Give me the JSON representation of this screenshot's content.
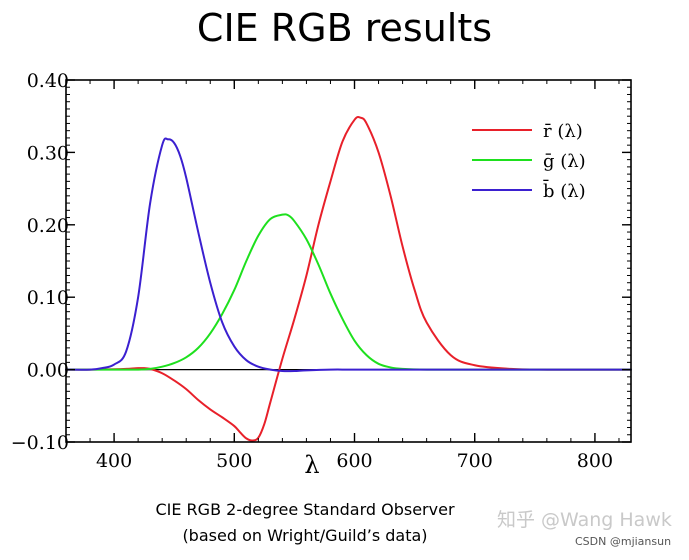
{
  "slide": {
    "title": "CIE RGB results",
    "caption_line1": "CIE RGB 2-degree Standard Observer",
    "caption_line2": "(based on Wright/Guild’s data)",
    "watermark": "知乎 @Wang Hawk",
    "credit": "CSDN @mjiansun"
  },
  "chart_data": {
    "type": "line",
    "title": "",
    "xlabel": "λ",
    "ylabel": "",
    "xlim": [
      360,
      830
    ],
    "ylim": [
      -0.1,
      0.4
    ],
    "xticks": [
      "400",
      "500",
      "600",
      "700",
      "800"
    ],
    "xtick_values": [
      400,
      500,
      600,
      700,
      800
    ],
    "yticks": [
      "−0.10",
      "0.00",
      "0.10",
      "0.20",
      "0.30",
      "0.40"
    ],
    "ytick_values": [
      -0.1,
      0.0,
      0.1,
      0.2,
      0.3,
      0.4
    ],
    "grid": false,
    "legend_position": "top-right",
    "zero_line": true,
    "series": [
      {
        "name": "r̄ (λ)",
        "color": "#e8202a",
        "x": [
          360,
          380,
          400,
          410,
          420,
          425,
          430,
          440,
          450,
          460,
          470,
          480,
          490,
          500,
          505,
          510,
          515,
          520,
          525,
          530,
          540,
          550,
          560,
          570,
          580,
          590,
          600,
          605,
          610,
          620,
          630,
          640,
          650,
          660,
          680,
          700,
          730,
          760,
          800,
          830
        ],
        "y": [
          0.0,
          0.0,
          0.0005,
          0.001,
          0.002,
          0.002,
          0.001,
          -0.005,
          -0.015,
          -0.027,
          -0.042,
          -0.055,
          -0.066,
          -0.078,
          -0.087,
          -0.095,
          -0.098,
          -0.094,
          -0.075,
          -0.045,
          0.015,
          0.07,
          0.13,
          0.2,
          0.26,
          0.315,
          0.345,
          0.348,
          0.34,
          0.3,
          0.24,
          0.17,
          0.11,
          0.065,
          0.02,
          0.006,
          0.001,
          0.0,
          0.0,
          0.0
        ]
      },
      {
        "name": "ḡ (λ)",
        "color": "#1ee01e",
        "x": [
          360,
          380,
          400,
          420,
          430,
          440,
          450,
          460,
          470,
          480,
          490,
          500,
          510,
          520,
          530,
          540,
          545,
          550,
          560,
          570,
          580,
          590,
          600,
          610,
          620,
          630,
          640,
          660,
          700,
          760,
          830
        ],
        "y": [
          0.0,
          0.0,
          0.0,
          0.0,
          0.001,
          0.004,
          0.009,
          0.017,
          0.03,
          0.05,
          0.077,
          0.11,
          0.15,
          0.185,
          0.208,
          0.214,
          0.213,
          0.205,
          0.18,
          0.145,
          0.105,
          0.07,
          0.04,
          0.02,
          0.008,
          0.003,
          0.001,
          0.0,
          0.0,
          0.0,
          0.0
        ]
      },
      {
        "name": "b̄ (λ)",
        "color": "#3b20d0",
        "x": [
          360,
          380,
          390,
          400,
          410,
          420,
          430,
          440,
          445,
          450,
          455,
          460,
          470,
          480,
          490,
          500,
          510,
          520,
          530,
          540,
          550,
          560,
          580,
          600,
          650,
          700,
          830
        ],
        "y": [
          0.0,
          0.0,
          0.002,
          0.007,
          0.025,
          0.1,
          0.23,
          0.31,
          0.318,
          0.313,
          0.295,
          0.265,
          0.19,
          0.12,
          0.065,
          0.032,
          0.013,
          0.004,
          0.0,
          -0.002,
          -0.002,
          -0.001,
          0.0,
          0.0,
          0.0,
          0.0,
          0.0
        ]
      }
    ]
  }
}
